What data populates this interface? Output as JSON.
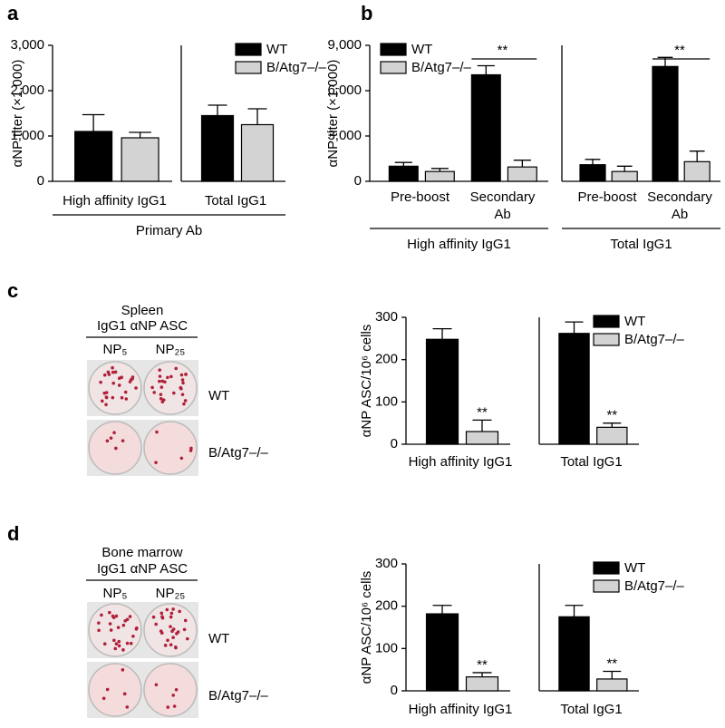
{
  "chart_data": [
    {
      "type": "bar",
      "panel": "a",
      "ylabel": "αNP titer (×1,000)",
      "ylim": [
        0,
        3000
      ],
      "yticks": [
        0,
        {
          "value": 1000,
          "label": "1,000"
        },
        {
          "value": 2000,
          "label": "2,000"
        },
        {
          "value": 3000,
          "label": "3,000"
        }
      ],
      "group_label": "Primary Ab",
      "subplots": [
        {
          "categories": [
            "High affinity IgG1"
          ],
          "series": [
            {
              "name": "WT",
              "color": "#000000",
              "values": [
                1100
              ],
              "errors": [
                370
              ]
            },
            {
              "name": "B/Atg7–/–",
              "color": "#d3d3d3",
              "values": [
                960
              ],
              "errors": [
                120
              ]
            }
          ]
        },
        {
          "categories": [
            "Total IgG1"
          ],
          "legend": "upper left",
          "series": [
            {
              "name": "WT",
              "color": "#000000",
              "values": [
                1450
              ],
              "errors": [
                230
              ]
            },
            {
              "name": "B/Atg7–/–",
              "color": "#d3d3d3",
              "values": [
                1250
              ],
              "errors": [
                350
              ]
            }
          ]
        }
      ]
    },
    {
      "type": "bar",
      "panel": "b",
      "ylabel": "αNP titer (×1,000)",
      "ylim": [
        0,
        9000
      ],
      "yticks": [
        0,
        {
          "value": 3000,
          "label": "3,000"
        },
        {
          "value": 6000,
          "label": "6,000"
        },
        {
          "value": 9000,
          "label": "9,000"
        }
      ],
      "subplots": [
        {
          "categories": [
            "Pre-boost",
            "Secondary Ab"
          ],
          "group_label": "High affinity IgG1",
          "legend": "upper left",
          "significance": [
            null,
            "**"
          ],
          "series": [
            {
              "name": "WT",
              "color": "#000000",
              "values": [
                1000,
                7050
              ],
              "errors": [
                250,
                600
              ]
            },
            {
              "name": "B/Atg7–/–",
              "color": "#d3d3d3",
              "values": [
                650,
                950
              ],
              "errors": [
                200,
                450
              ]
            }
          ]
        },
        {
          "categories": [
            "Pre-boost",
            "Secondary Ab"
          ],
          "group_label": "Total IgG1",
          "significance": [
            null,
            "**"
          ],
          "series": [
            {
              "name": "WT",
              "color": "#000000",
              "values": [
                1100,
                7600
              ],
              "errors": [
                350,
                600
              ]
            },
            {
              "name": "B/Atg7–/–",
              "color": "#d3d3d3",
              "values": [
                650,
                1300
              ],
              "errors": [
                350,
                700
              ]
            }
          ]
        }
      ]
    },
    {
      "type": "bar",
      "panel": "c",
      "ylabel": "αNP ASC/10⁶ cells",
      "ylim": [
        0,
        300
      ],
      "yticks": [
        0,
        100,
        200,
        300
      ],
      "image": {
        "title": [
          "Spleen",
          "IgG1 αNP ASC"
        ],
        "columns": [
          "NP₅",
          "NP₂₅"
        ],
        "rows": [
          "WT",
          "B/Atg7–/–"
        ]
      },
      "subplots": [
        {
          "categories": [
            "High affinity IgG1"
          ],
          "series": [
            {
              "name": "WT",
              "color": "#000000",
              "values": [
                248
              ],
              "errors": [
                25
              ]
            },
            {
              "name": "B/Atg7–/–",
              "color": "#d3d3d3",
              "values": [
                30
              ],
              "errors": [
                27
              ],
              "significance": [
                "**"
              ]
            }
          ]
        },
        {
          "categories": [
            "Total IgG1"
          ],
          "legend": "upper left",
          "series": [
            {
              "name": "WT",
              "color": "#000000",
              "values": [
                262
              ],
              "errors": [
                27
              ]
            },
            {
              "name": "B/Atg7–/–",
              "color": "#d3d3d3",
              "values": [
                40
              ],
              "errors": [
                10
              ],
              "significance": [
                "**"
              ]
            }
          ]
        }
      ]
    },
    {
      "type": "bar",
      "panel": "d",
      "ylabel": "αNP ASC/10⁶ cells",
      "ylim": [
        0,
        300
      ],
      "yticks": [
        0,
        100,
        200,
        300
      ],
      "image": {
        "title": [
          "Bone marrow",
          "IgG1 αNP ASC"
        ],
        "columns": [
          "NP₅",
          "NP₂₅"
        ],
        "rows": [
          "WT",
          "B/Atg7–/–"
        ]
      },
      "subplots": [
        {
          "categories": [
            "High affinity IgG1"
          ],
          "series": [
            {
              "name": "WT",
              "color": "#000000",
              "values": [
                182
              ],
              "errors": [
                20
              ]
            },
            {
              "name": "B/Atg7–/–",
              "color": "#d3d3d3",
              "values": [
                33
              ],
              "errors": [
                10
              ],
              "significance": [
                "**"
              ]
            }
          ]
        },
        {
          "categories": [
            "Total IgG1"
          ],
          "legend": "upper left",
          "series": [
            {
              "name": "WT",
              "color": "#000000",
              "values": [
                175
              ],
              "errors": [
                27
              ]
            },
            {
              "name": "B/Atg7–/–",
              "color": "#d3d3d3",
              "values": [
                28
              ],
              "errors": [
                18
              ],
              "significance": [
                "**"
              ]
            }
          ]
        }
      ]
    }
  ]
}
